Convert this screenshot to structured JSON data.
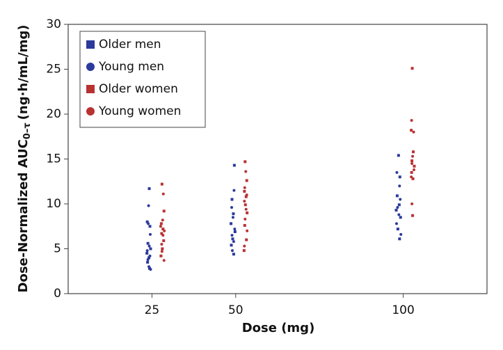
{
  "chart_data": {
    "type": "scatter",
    "xlabel": "Dose (mg)",
    "ylabel": {
      "main": "Dose-Normalized AUC",
      "sub": "0–τ",
      "unit": "(ng·h/mL/mg)"
    },
    "xlim": [
      0,
      125
    ],
    "xticks": [
      25,
      50,
      100
    ],
    "ylim": [
      0,
      30
    ],
    "yticks": [
      0,
      5,
      10,
      15,
      20,
      25,
      30
    ],
    "legend": "upper left",
    "series": [
      {
        "name": "Older men",
        "color": "#2b3a9b",
        "marker": "square",
        "x": [
          24.2,
          23.6,
          24.4,
          23.8,
          24.6,
          23.5,
          24.1,
          23.7,
          24.3,
          49.6,
          48.9,
          49.3,
          48.6,
          49.8,
          49.1,
          48.7,
          49.4,
          98.6,
          99.0,
          98.2,
          98.8,
          97.9,
          99.2,
          98.4,
          98.9
        ],
        "values": [
          11.7,
          8.0,
          7.5,
          5.6,
          5.0,
          4.5,
          4.0,
          3.5,
          2.8,
          14.3,
          10.5,
          8.9,
          7.8,
          6.9,
          6.1,
          5.4,
          4.4,
          15.4,
          13.0,
          10.9,
          9.9,
          9.3,
          8.5,
          7.2,
          6.1
        ]
      },
      {
        "name": "Young men",
        "color": "#2b3a9b",
        "marker": "circle",
        "x": [
          24.0,
          23.9,
          24.5,
          24.2,
          23.6,
          24.4,
          23.8,
          24.1,
          24.6,
          49.5,
          48.8,
          49.2,
          49.7,
          48.9,
          49.4,
          49.0,
          98.1,
          98.9,
          99.1,
          98.3,
          98.7,
          98.0,
          99.3
        ],
        "values": [
          9.8,
          7.8,
          6.6,
          5.3,
          4.8,
          4.2,
          3.8,
          3.0,
          2.7,
          11.5,
          9.6,
          8.5,
          7.2,
          6.5,
          5.8,
          4.8,
          13.5,
          12.0,
          10.5,
          9.6,
          8.8,
          7.8,
          6.6
        ]
      },
      {
        "name": "Older women",
        "color": "#b83232",
        "marker": "square",
        "x": [
          28.0,
          28.6,
          27.8,
          28.3,
          27.9,
          28.5,
          28.1,
          27.7,
          52.8,
          53.3,
          52.6,
          53.1,
          52.9,
          53.4,
          52.7,
          53.2,
          52.5,
          102.7,
          102.4,
          103.0,
          102.6,
          103.3,
          102.5,
          102.9,
          102.8
        ],
        "values": [
          12.2,
          9.2,
          7.8,
          7.2,
          6.7,
          5.9,
          5.0,
          4.2,
          14.7,
          12.6,
          11.4,
          10.8,
          9.9,
          9.0,
          7.6,
          6.0,
          4.8,
          25.1,
          18.2,
          15.8,
          14.8,
          14.2,
          13.5,
          12.8,
          8.7
        ]
      },
      {
        "name": "Young women",
        "color": "#b83232",
        "marker": "circle",
        "x": [
          28.4,
          28.2,
          27.6,
          28.7,
          28.3,
          27.9,
          28.0,
          28.6,
          53.0,
          52.7,
          53.3,
          52.6,
          53.1,
          52.8,
          53.4,
          52.6,
          102.5,
          103.1,
          102.8,
          102.6,
          103.2,
          102.4,
          102.6
        ],
        "values": [
          11.1,
          8.2,
          7.5,
          7.0,
          6.5,
          5.5,
          4.7,
          3.7,
          13.6,
          11.8,
          11.0,
          10.3,
          9.4,
          8.3,
          7.0,
          5.3,
          19.3,
          18.0,
          15.3,
          14.5,
          13.8,
          13.0,
          10.0
        ]
      }
    ]
  }
}
